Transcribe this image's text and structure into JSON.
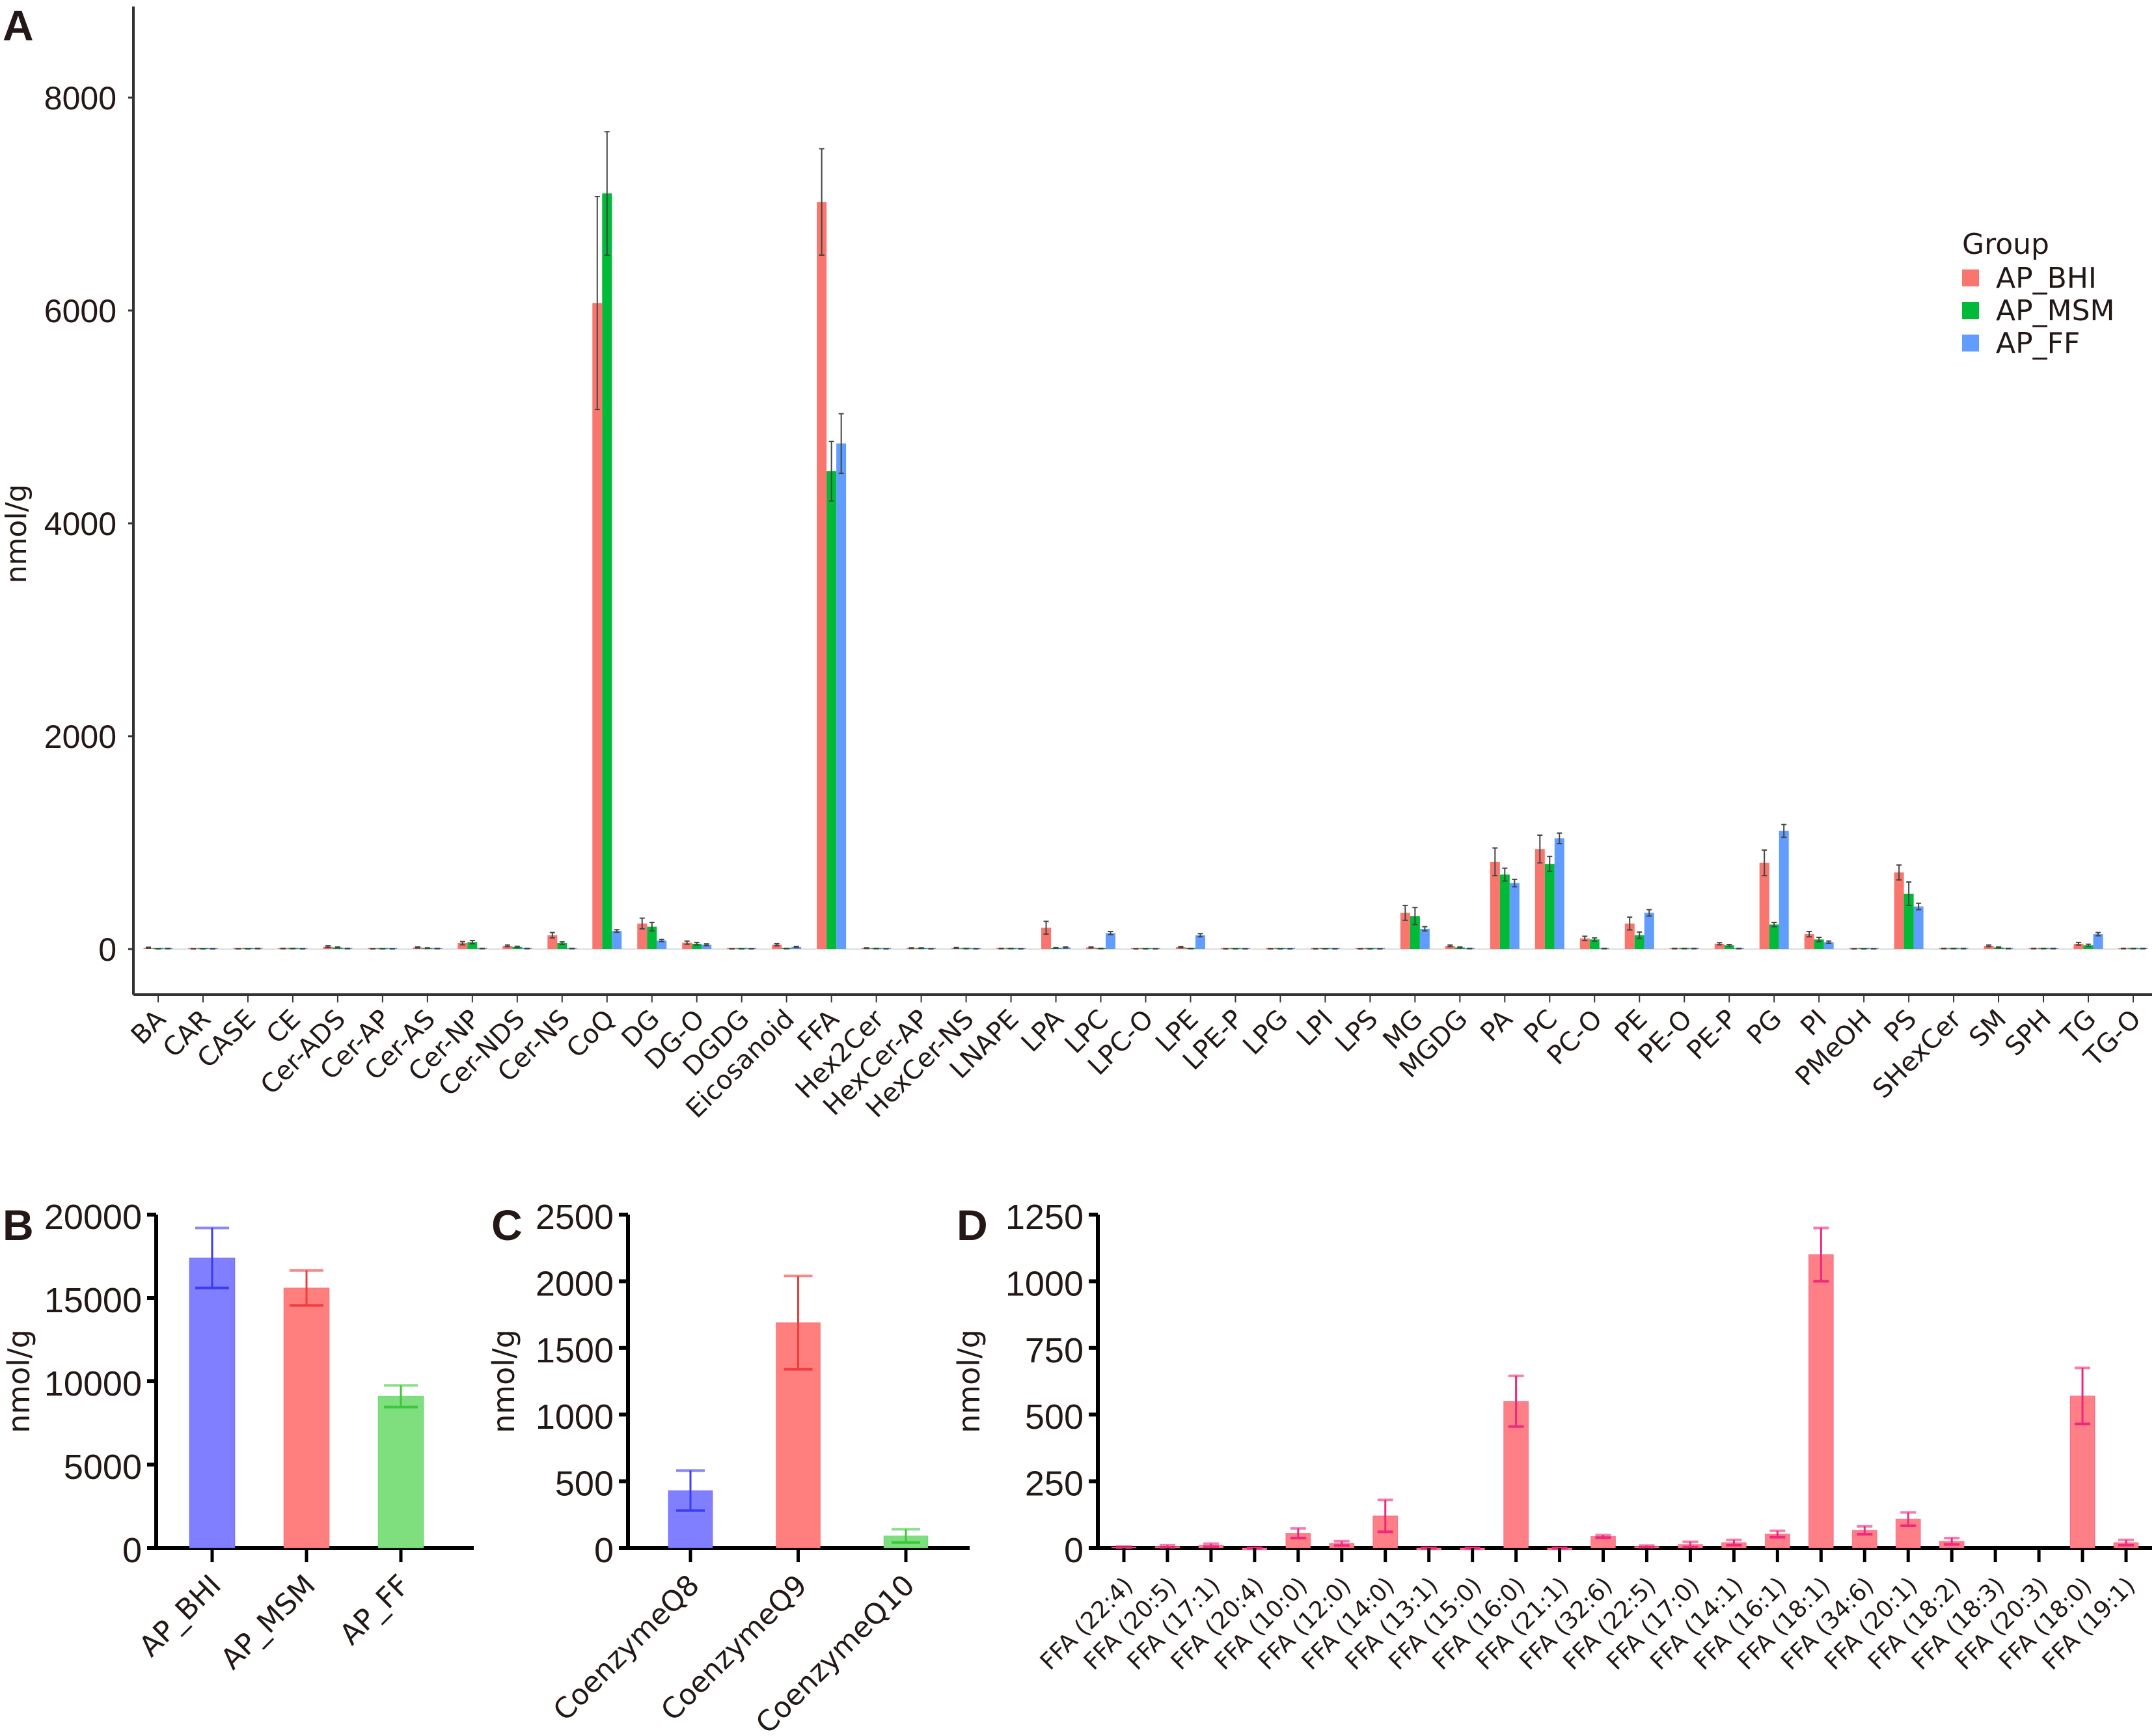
{
  "chart_data": [
    {
      "panel": "A",
      "type": "bar",
      "title": "",
      "xlabel": "",
      "ylabel": "nmol/g",
      "ylim": [
        -500,
        8800
      ],
      "yticks": [
        0,
        2000,
        4000,
        6000,
        8000
      ],
      "grid": false,
      "legend": {
        "title": "Group",
        "placement": "right"
      },
      "categories": [
        "BA",
        "CAR",
        "CASE",
        "CE",
        "Cer-ADS",
        "Cer-AP",
        "Cer-AS",
        "Cer-NP",
        "Cer-NDS",
        "Cer-NS",
        "CoQ",
        "DG",
        "DG-O",
        "DGDG",
        "Eicosanoid",
        "FFA",
        "Hex2Cer",
        "HexCer-AP",
        "HexCer-NS",
        "LNAPE",
        "LPA",
        "LPC",
        "LPC-O",
        "LPE",
        "LPE-P",
        "LPG",
        "LPI",
        "LPS",
        "MG",
        "MGDG",
        "PA",
        "PC",
        "PC-O",
        "PE",
        "PE-O",
        "PE-P",
        "PG",
        "PI",
        "PMeOH",
        "PS",
        "SHexCer",
        "SM",
        "SPH",
        "TG",
        "TG-O"
      ],
      "series": [
        {
          "name": "AP_BHI",
          "color": "#F8766D",
          "values": [
            12,
            3,
            3,
            5,
            22,
            3,
            15,
            55,
            30,
            130,
            6070,
            240,
            60,
            3,
            40,
            7020,
            8,
            8,
            10,
            5,
            200,
            15,
            3,
            18,
            3,
            3,
            3,
            3,
            340,
            30,
            820,
            940,
            100,
            240,
            5,
            50,
            810,
            140,
            3,
            720,
            5,
            30,
            5,
            50,
            5
          ],
          "errors": [
            5,
            1,
            1,
            2,
            8,
            1,
            6,
            15,
            8,
            25,
            1000,
            50,
            15,
            1,
            10,
            500,
            3,
            3,
            4,
            2,
            60,
            5,
            1,
            6,
            1,
            1,
            1,
            1,
            70,
            8,
            130,
            130,
            20,
            60,
            2,
            10,
            120,
            25,
            1,
            70,
            2,
            8,
            2,
            12,
            2
          ]
        },
        {
          "name": "AP_MSM",
          "color": "#00BA38",
          "values": [
            3,
            3,
            3,
            5,
            15,
            3,
            8,
            65,
            20,
            55,
            7100,
            210,
            50,
            3,
            5,
            4490,
            5,
            8,
            5,
            5,
            10,
            5,
            3,
            5,
            3,
            3,
            3,
            3,
            310,
            15,
            700,
            800,
            90,
            130,
            5,
            35,
            230,
            90,
            3,
            520,
            5,
            15,
            5,
            35,
            5
          ],
          "errors": [
            1,
            1,
            1,
            2,
            5,
            1,
            3,
            15,
            6,
            12,
            580,
            40,
            12,
            1,
            2,
            280,
            2,
            3,
            2,
            2,
            3,
            2,
            1,
            2,
            1,
            1,
            1,
            1,
            80,
            5,
            60,
            70,
            15,
            30,
            2,
            8,
            20,
            20,
            1,
            110,
            2,
            5,
            2,
            10,
            2
          ],
          "note": ""
        },
        {
          "name": "AP_FF",
          "color": "#619CFF",
          "values": [
            5,
            3,
            5,
            3,
            5,
            3,
            5,
            5,
            5,
            5,
            170,
            80,
            40,
            3,
            20,
            4750,
            3,
            3,
            3,
            3,
            15,
            150,
            3,
            130,
            3,
            3,
            3,
            3,
            190,
            5,
            620,
            1040,
            5,
            340,
            5,
            5,
            1110,
            65,
            3,
            400,
            5,
            5,
            5,
            140,
            5
          ],
          "errors": [
            2,
            1,
            2,
            1,
            2,
            1,
            2,
            2,
            2,
            2,
            12,
            10,
            8,
            1,
            5,
            280,
            1,
            1,
            1,
            1,
            5,
            15,
            1,
            15,
            1,
            1,
            1,
            1,
            20,
            2,
            35,
            50,
            2,
            30,
            2,
            2,
            60,
            10,
            1,
            30,
            2,
            2,
            2,
            15,
            2
          ]
        }
      ]
    },
    {
      "panel": "B",
      "type": "bar",
      "title": "",
      "xlabel": "",
      "ylabel": "nmol/g",
      "ylim": [
        0,
        20000
      ],
      "yticks": [
        0,
        5000,
        10000,
        15000,
        20000
      ],
      "categories": [
        "AP_BHI",
        "AP_MSM",
        "AP_FF"
      ],
      "colors": [
        "#7F7FFF",
        "#FF7F7F",
        "#7FDF7F"
      ],
      "error_colors": [
        "#3C3CF0",
        "#F03C3C",
        "#3CC83C"
      ],
      "values": [
        17400,
        15600,
        9100
      ],
      "errors": [
        1800,
        1050,
        650
      ]
    },
    {
      "panel": "C",
      "type": "bar",
      "title": "",
      "xlabel": "",
      "ylabel": "nmol/g",
      "ylim": [
        0,
        2500
      ],
      "yticks": [
        0,
        500,
        1000,
        1500,
        2000,
        2500
      ],
      "categories": [
        "CoenzymeQ8",
        "CoenzymeQ9",
        "CoenzymeQ10"
      ],
      "colors": [
        "#7F7FFF",
        "#FF7F7F",
        "#7FDF7F"
      ],
      "error_colors": [
        "#3C3CF0",
        "#F03C3C",
        "#3CC83C"
      ],
      "values": [
        430,
        1690,
        90
      ],
      "errors": [
        150,
        350,
        50
      ]
    },
    {
      "panel": "D",
      "type": "bar",
      "title": "",
      "xlabel": "",
      "ylabel": "nmol/g",
      "ylim": [
        0,
        1250
      ],
      "yticks": [
        0,
        250,
        500,
        750,
        1000,
        1250
      ],
      "categories": [
        "FFA (22:4)",
        "FFA (20:5)",
        "FFA (17:1)",
        "FFA (20:4)",
        "FFA (10:0)",
        "FFA (12:0)",
        "FFA (14:0)",
        "FFA (13:1)",
        "FFA (15:0)",
        "FFA (16:0)",
        "FFA (21:1)",
        "FFA (32:6)",
        "FFA (22:5)",
        "FFA (17:0)",
        "FFA (14:1)",
        "FFA (16:1)",
        "FFA (18:1)",
        "FFA (34:6)",
        "FFA (20:1)",
        "FFA (18:2)",
        "FFA (18:3)",
        "FFA (20:3)",
        "FFA (18:0)",
        "FFA (19:1)"
      ],
      "color": "#FF7F87",
      "error_color": "#F0287A",
      "values": [
        3,
        6,
        10,
        -3,
        55,
        17,
        120,
        -3,
        -3,
        550,
        -3,
        43,
        6,
        13,
        20,
        52,
        1100,
        66,
        108,
        25,
        0,
        0,
        570,
        20
      ],
      "errors": [
        2,
        4,
        6,
        1,
        18,
        8,
        60,
        1,
        1,
        95,
        1,
        5,
        3,
        10,
        10,
        12,
        100,
        15,
        25,
        12,
        0,
        0,
        105,
        10
      ]
    }
  ],
  "panels": {
    "A": {
      "letter": "A"
    },
    "B": {
      "letter": "B"
    },
    "C": {
      "letter": "C"
    },
    "D": {
      "letter": "D"
    }
  }
}
